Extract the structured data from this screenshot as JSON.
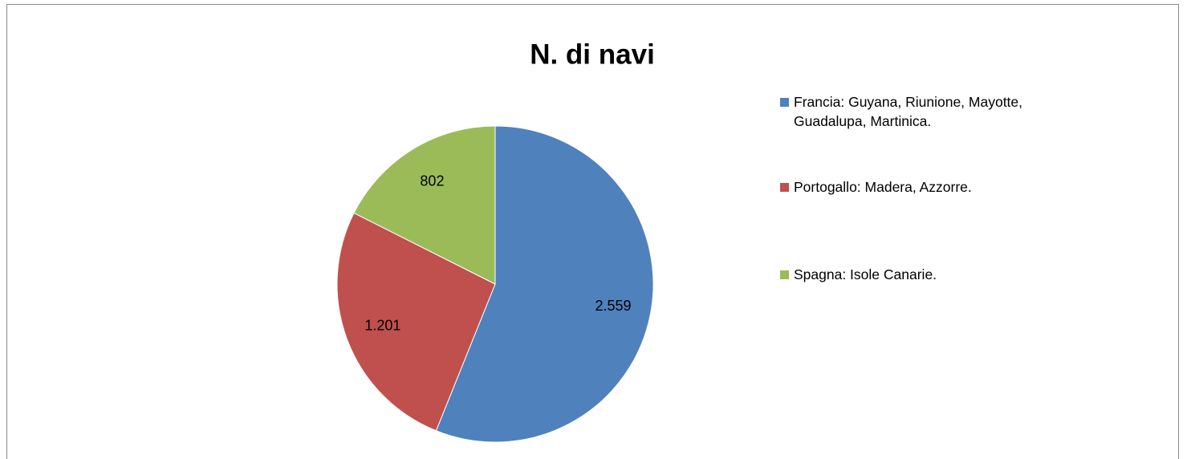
{
  "chart_data": {
    "type": "pie",
    "title": "N. di navi",
    "categories": [
      "Francia: Guyana, Riunione, Mayotte, Guadalupa, Martinica.",
      "Portogallo: Madera, Azzorre.",
      "Spagna: Isole Canarie."
    ],
    "values": [
      2559,
      1201,
      802
    ],
    "value_labels": [
      "2.559",
      "1.201",
      "802"
    ],
    "colors": [
      "#4f81bd",
      "#c0504d",
      "#9bbb59"
    ],
    "legend": "right"
  }
}
